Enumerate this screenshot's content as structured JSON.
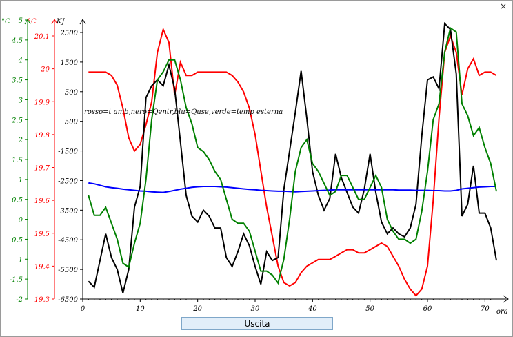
{
  "window": {
    "close_label": "×"
  },
  "exit_button": {
    "label": "Uscita"
  },
  "chart_data": {
    "type": "line",
    "annotation": "rosso=t amb,nero=Qentr,blu=Quse,verde=temp esterna",
    "xlabel": "ora",
    "xlim": [
      0,
      72
    ],
    "x_ticks": [
      0,
      10,
      20,
      30,
      40,
      50,
      60,
      70
    ],
    "axes": [
      {
        "id": "green",
        "unit": "°C",
        "color": "#008000",
        "ylim": [
          -2,
          5
        ],
        "ticks": [
          "-2",
          "-1.5",
          "-1",
          "-0.5",
          "0",
          "0.5",
          "1",
          "1.5",
          "2",
          "2.5",
          "3",
          "3.5",
          "4",
          "4.5",
          "5"
        ]
      },
      {
        "id": "red",
        "unit": "°C",
        "color": "#ff0000",
        "ylim": [
          19.3,
          20.13
        ],
        "ticks": [
          "19.3",
          "19.4",
          "19.5",
          "19.6",
          "19.7",
          "19.8",
          "19.9",
          "20",
          "20.1"
        ]
      },
      {
        "id": "black",
        "unit": "KJ",
        "color": "#000000",
        "ylim": [
          -6500,
          3200
        ],
        "ticks": [
          "-6500",
          "-5500",
          "-4500",
          "-3500",
          "-2500",
          "-1500",
          "-500",
          "500",
          "1500",
          "2500"
        ]
      }
    ],
    "x": [
      1,
      2,
      3,
      4,
      5,
      6,
      7,
      8,
      9,
      10,
      11,
      12,
      13,
      14,
      15,
      16,
      17,
      18,
      19,
      20,
      21,
      22,
      23,
      24,
      25,
      26,
      27,
      28,
      29,
      30,
      31,
      32,
      33,
      34,
      35,
      36,
      37,
      38,
      39,
      40,
      41,
      42,
      43,
      44,
      45,
      46,
      47,
      48,
      49,
      50,
      51,
      52,
      53,
      54,
      55,
      56,
      57,
      58,
      59,
      60,
      61,
      62,
      63,
      64,
      65,
      66,
      67,
      68,
      69,
      70,
      71,
      72
    ],
    "series": [
      {
        "name": "t amb",
        "axis": "red",
        "color": "#ff0000",
        "values": [
          19.99,
          19.99,
          19.99,
          19.99,
          19.98,
          19.95,
          19.88,
          19.79,
          19.75,
          19.77,
          19.83,
          19.9,
          20.05,
          20.12,
          20.08,
          19.92,
          20.02,
          19.98,
          19.98,
          19.99,
          19.99,
          19.99,
          19.99,
          19.99,
          19.99,
          19.98,
          19.96,
          19.93,
          19.88,
          19.8,
          19.69,
          19.58,
          19.49,
          19.4,
          19.35,
          19.34,
          19.35,
          19.38,
          19.4,
          19.41,
          19.42,
          19.42,
          19.42,
          19.43,
          19.44,
          19.45,
          19.45,
          19.44,
          19.44,
          19.45,
          19.46,
          19.47,
          19.46,
          19.43,
          19.4,
          19.36,
          19.33,
          19.31,
          19.33,
          19.4,
          19.6,
          19.85,
          20.05,
          20.1,
          20.05,
          19.92,
          20.0,
          20.03,
          19.98,
          19.99,
          19.99,
          19.98
        ]
      },
      {
        "name": "Qentr",
        "axis": "black",
        "color": "#000000",
        "values": [
          -5900,
          -6100,
          -5200,
          -4300,
          -5100,
          -5500,
          -6300,
          -5500,
          -3400,
          -2700,
          300,
          700,
          900,
          700,
          1400,
          600,
          -1200,
          -3000,
          -3700,
          -3900,
          -3500,
          -3700,
          -4100,
          -4100,
          -5100,
          -5400,
          -4900,
          -4300,
          -4700,
          -5400,
          -6000,
          -4900,
          -5200,
          -5100,
          -2800,
          -1500,
          -200,
          1200,
          -400,
          -2200,
          -3000,
          -3500,
          -3100,
          -1600,
          -2400,
          -2900,
          -3400,
          -3600,
          -2800,
          -1600,
          -2900,
          -3900,
          -4300,
          -4100,
          -4300,
          -4400,
          -4100,
          -3300,
          -1000,
          900,
          1000,
          600,
          2800,
          2600,
          1100,
          -3700,
          -3300,
          -2000,
          -3600,
          -3600,
          -4100,
          -5200
        ]
      },
      {
        "name": "Quse",
        "axis": "black",
        "color": "#0000ff",
        "values": [
          -2580,
          -2610,
          -2660,
          -2710,
          -2740,
          -2760,
          -2790,
          -2810,
          -2830,
          -2850,
          -2860,
          -2880,
          -2890,
          -2900,
          -2870,
          -2830,
          -2790,
          -2760,
          -2730,
          -2710,
          -2700,
          -2700,
          -2700,
          -2710,
          -2720,
          -2740,
          -2760,
          -2780,
          -2800,
          -2810,
          -2830,
          -2840,
          -2850,
          -2860,
          -2860,
          -2870,
          -2880,
          -2870,
          -2860,
          -2850,
          -2840,
          -2830,
          -2820,
          -2810,
          -2810,
          -2810,
          -2810,
          -2810,
          -2810,
          -2810,
          -2810,
          -2810,
          -2810,
          -2810,
          -2820,
          -2820,
          -2820,
          -2830,
          -2830,
          -2830,
          -2840,
          -2840,
          -2850,
          -2850,
          -2830,
          -2780,
          -2760,
          -2740,
          -2720,
          -2710,
          -2700,
          -2700
        ]
      },
      {
        "name": "temp esterna",
        "axis": "green",
        "color": "#008000",
        "values": [
          0.6,
          0.1,
          0.1,
          0.3,
          -0.1,
          -0.5,
          -1.1,
          -1.2,
          -0.6,
          -0.1,
          1.0,
          2.5,
          3.5,
          3.7,
          4.0,
          4.0,
          3.5,
          2.8,
          2.4,
          1.8,
          1.7,
          1.5,
          1.2,
          1.0,
          0.5,
          0.0,
          -0.1,
          -0.1,
          -0.3,
          -0.8,
          -1.3,
          -1.3,
          -1.4,
          -1.6,
          -1.0,
          0.0,
          1.2,
          1.8,
          2.0,
          1.4,
          1.2,
          0.9,
          0.6,
          0.7,
          1.1,
          1.1,
          0.8,
          0.5,
          0.5,
          0.8,
          1.1,
          0.8,
          0.0,
          -0.3,
          -0.5,
          -0.5,
          -0.6,
          -0.5,
          0.2,
          1.2,
          2.5,
          2.9,
          4.2,
          4.8,
          4.7,
          2.9,
          2.6,
          2.1,
          2.3,
          1.8,
          1.4,
          0.7
        ]
      }
    ]
  }
}
